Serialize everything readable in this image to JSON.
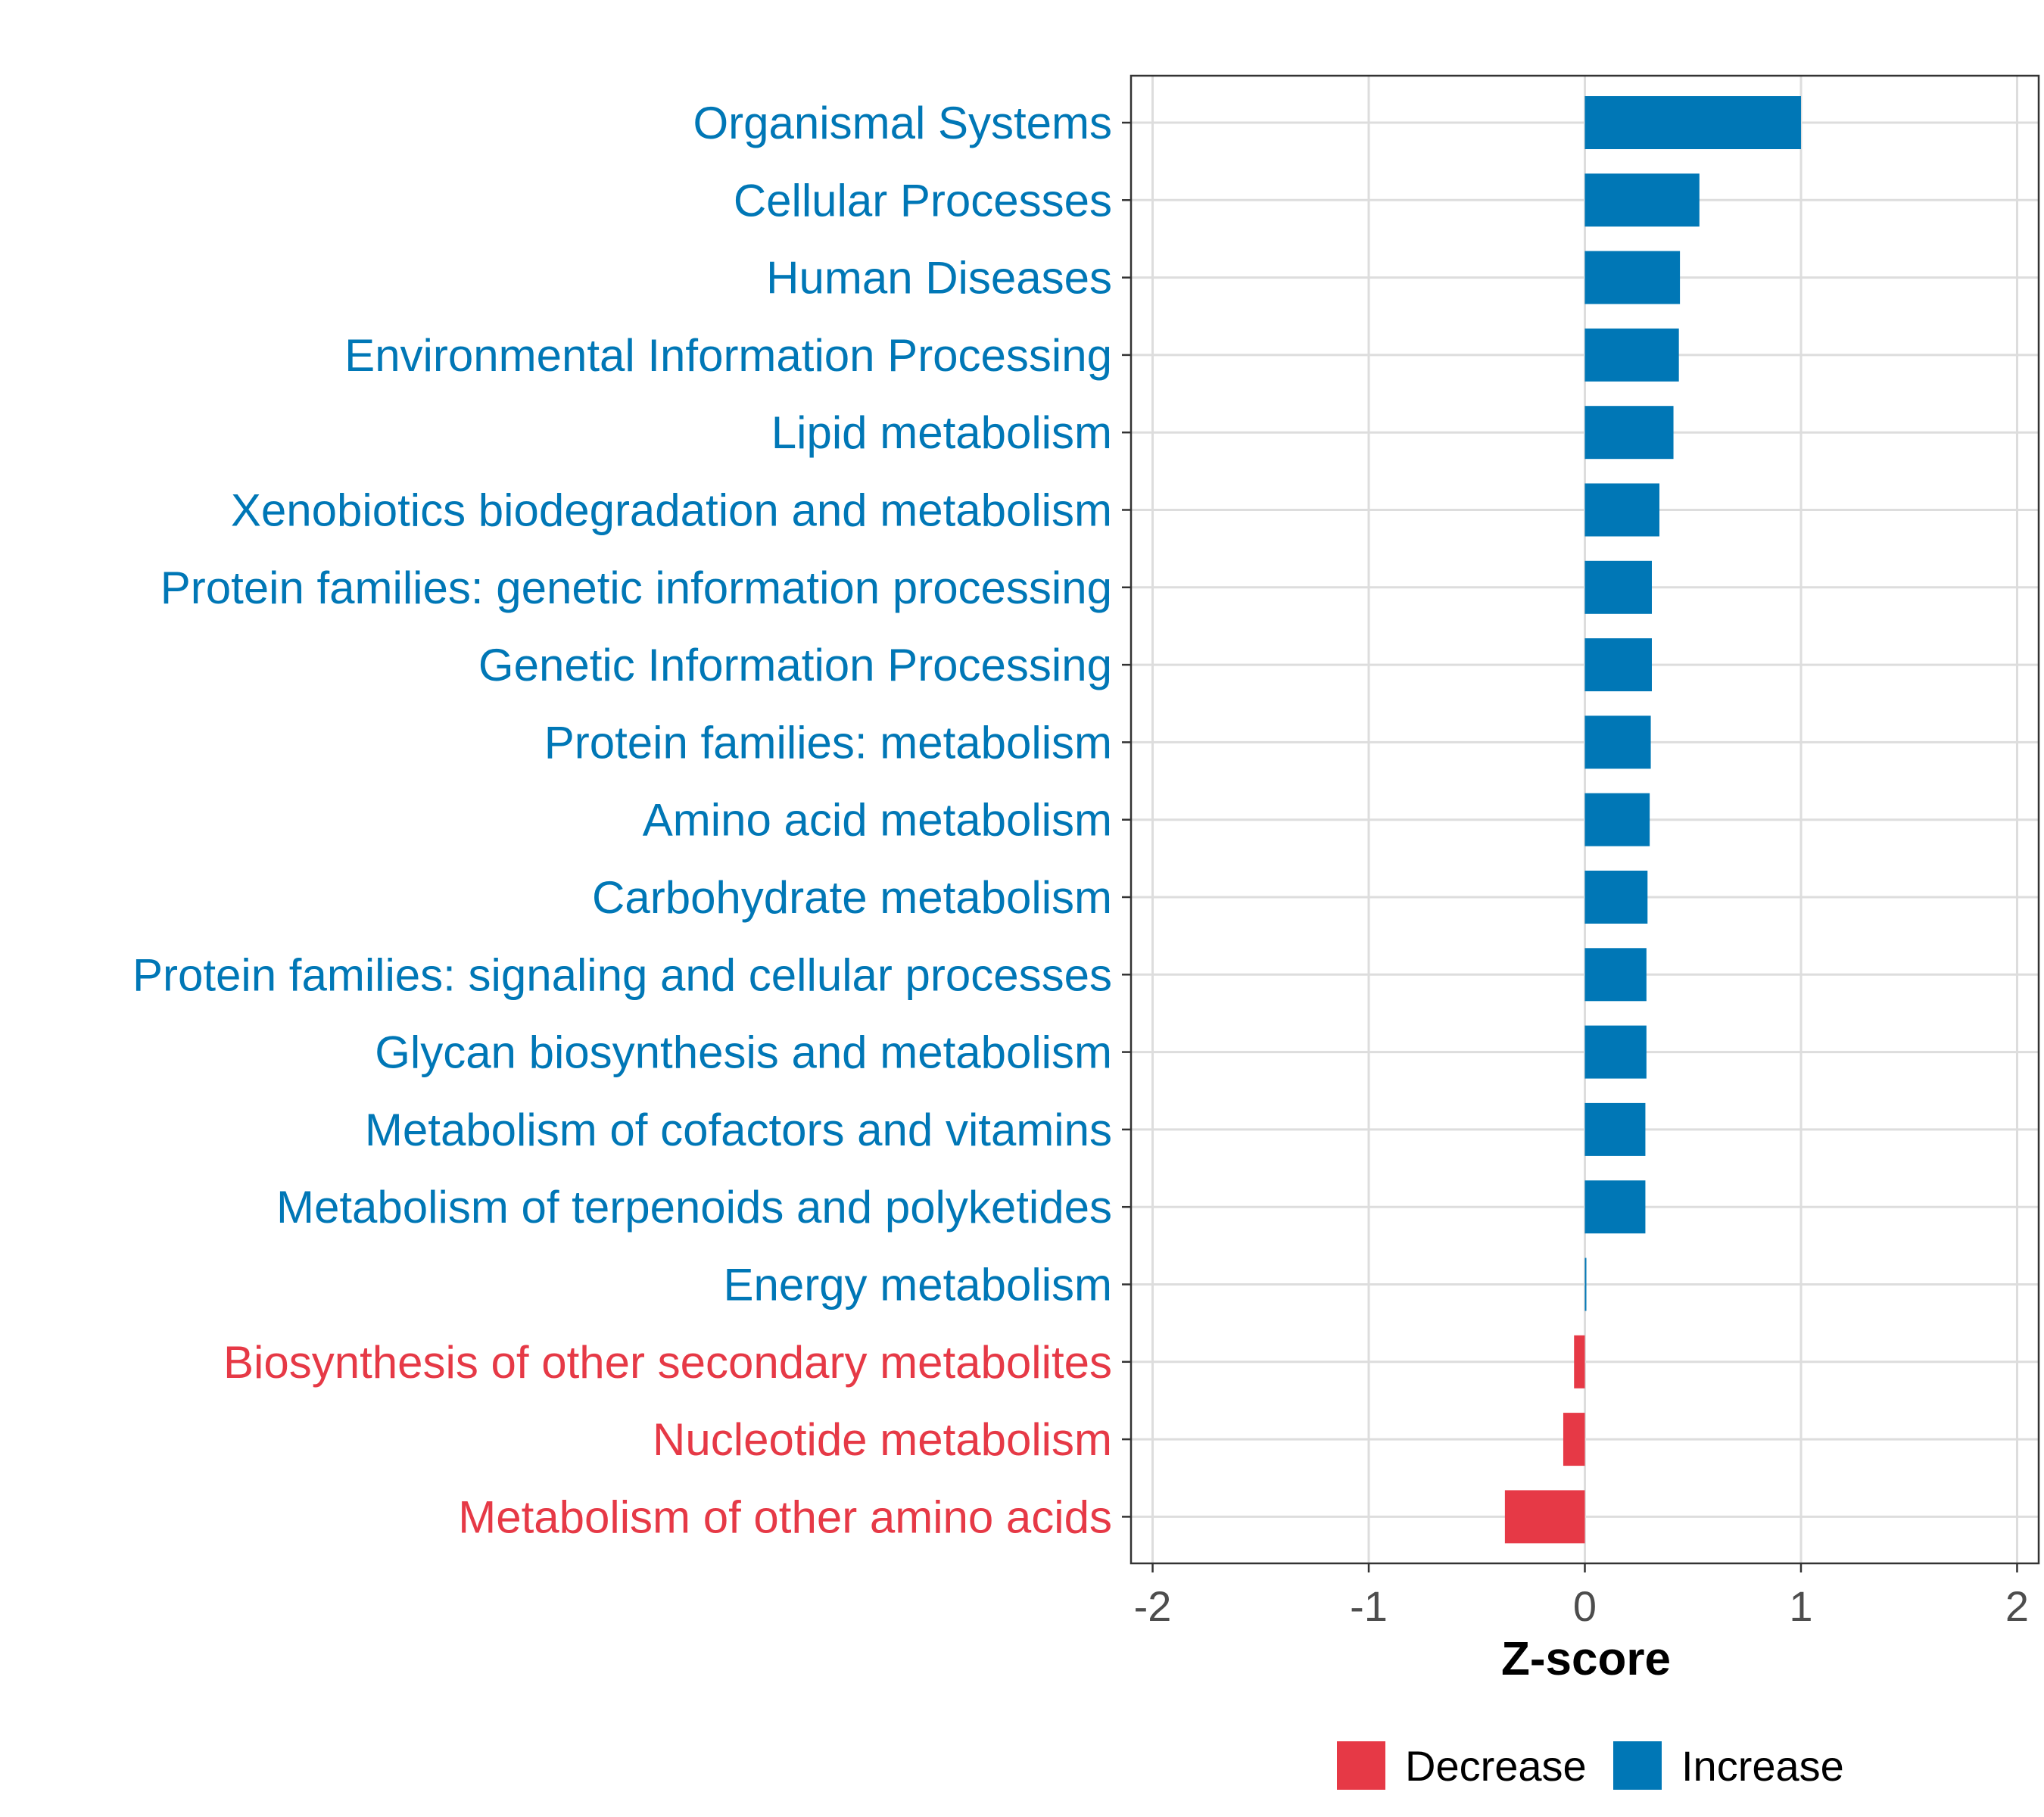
{
  "chart_data": {
    "type": "bar",
    "orientation": "horizontal",
    "xlabel": "Z-score",
    "xlim": [
      -2.1,
      2.1
    ],
    "xticks": [
      -2,
      -1,
      0,
      1,
      2
    ],
    "xtick_labels": [
      "-2",
      "-1",
      "0",
      "1",
      "2"
    ],
    "grid": true,
    "legend_position": "bottom",
    "colors": {
      "Decrease": "#e63946",
      "Increase": "#0077b6"
    },
    "legend": [
      {
        "label": "Decrease",
        "color": "#e63946"
      },
      {
        "label": "Increase",
        "color": "#0077b6"
      }
    ],
    "categories": [
      "Organismal Systems",
      "Cellular Processes",
      "Human Diseases",
      "Environmental Information Processing",
      "Lipid metabolism",
      "Xenobiotics biodegradation and metabolism",
      "Protein families: genetic information processing",
      "Genetic Information Processing",
      "Protein families: metabolism",
      "Amino acid metabolism",
      "Carbohydrate metabolism",
      "Protein families: signaling and cellular processes",
      "Glycan biosynthesis and metabolism",
      "Metabolism of cofactors and vitamins",
      "Metabolism of terpenoids and polyketides",
      "Energy metabolism",
      "Biosynthesis of other secondary metabolites",
      "Nucleotide metabolism",
      "Metabolism of other amino acids"
    ],
    "values": [
      1.0,
      0.53,
      0.44,
      0.435,
      0.41,
      0.345,
      0.31,
      0.31,
      0.305,
      0.3,
      0.29,
      0.285,
      0.285,
      0.28,
      0.28,
      0.005,
      -0.05,
      -0.1,
      -0.37
    ],
    "groups": [
      "Increase",
      "Increase",
      "Increase",
      "Increase",
      "Increase",
      "Increase",
      "Increase",
      "Increase",
      "Increase",
      "Increase",
      "Increase",
      "Increase",
      "Increase",
      "Increase",
      "Increase",
      "Increase",
      "Decrease",
      "Decrease",
      "Decrease"
    ]
  }
}
